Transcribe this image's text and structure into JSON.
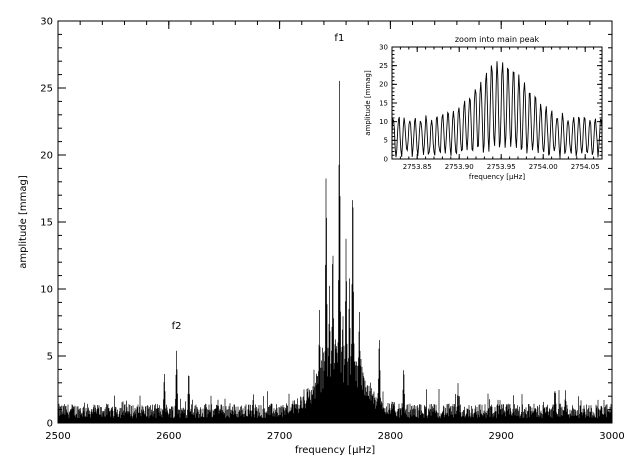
{
  "colors": {
    "foreground": "#000000",
    "background": "#ffffff"
  },
  "chart_data": [
    {
      "type": "line",
      "xlabel": "frequency [μHz]",
      "ylabel": "amplitude [mmag]",
      "xlim": [
        2500,
        3000
      ],
      "ylim": [
        0,
        30
      ],
      "xticks": [
        2500,
        2600,
        2700,
        2800,
        2900,
        3000
      ],
      "yticks": [
        0,
        5,
        10,
        15,
        20,
        25,
        30
      ],
      "x_tick_labels": [
        "2500",
        "2600",
        "2700",
        "2800",
        "2900",
        "3000"
      ],
      "y_tick_labels": [
        "0",
        "5",
        "10",
        "15",
        "20",
        "25",
        "30"
      ],
      "annotations": [
        {
          "text": "f1",
          "x": 2753.95,
          "y": 28.5
        },
        {
          "text": "f2",
          "x": 2607,
          "y": 7.0
        }
      ],
      "peaks": [
        {
          "x": 2596,
          "y": 4.0
        },
        {
          "x": 2607,
          "y": 5.6
        },
        {
          "x": 2618,
          "y": 4.2
        },
        {
          "x": 2736,
          "y": 8.5
        },
        {
          "x": 2742,
          "y": 20.0
        },
        {
          "x": 2745,
          "y": 10.5
        },
        {
          "x": 2748,
          "y": 14.5
        },
        {
          "x": 2754,
          "y": 26.7
        },
        {
          "x": 2760,
          "y": 14.5
        },
        {
          "x": 2763,
          "y": 11.5
        },
        {
          "x": 2766,
          "y": 19.5
        },
        {
          "x": 2772,
          "y": 9.0
        },
        {
          "x": 2790,
          "y": 7.0
        },
        {
          "x": 2812,
          "y": 4.5
        },
        {
          "x": 2861,
          "y": 3.0
        },
        {
          "x": 2958,
          "y": 2.5
        }
      ],
      "noise_level": 1.2,
      "envelope_center": 2755,
      "envelope_width": 25,
      "envelope_height": 5
    },
    {
      "type": "line",
      "title": "zoom into main peak",
      "xlabel": "frequency [μHz]",
      "ylabel": "amplitude [mmag]",
      "xlim": [
        2753.82,
        2754.07
      ],
      "ylim": [
        0,
        30
      ],
      "xticks": [
        2753.85,
        2753.9,
        2753.95,
        2754.0,
        2754.05
      ],
      "yticks": [
        0,
        5,
        10,
        15,
        20,
        25,
        30
      ],
      "x_tick_labels": [
        "2753.85",
        "2753.90",
        "2753.95",
        "2754.00",
        "2754.05"
      ],
      "y_tick_labels": [
        "0",
        "5",
        "10",
        "15",
        "20",
        "25",
        "30"
      ],
      "oscillation_period": 0.0065,
      "peak_center": 2753.95,
      "peak_amplitude": 26
    }
  ]
}
